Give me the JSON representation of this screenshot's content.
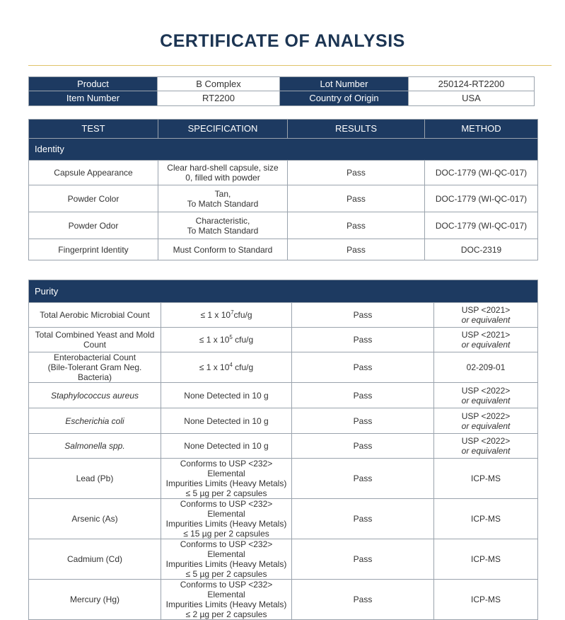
{
  "title": "CERTIFICATE OF ANALYSIS",
  "colors": {
    "header_fill": "#1d3a61",
    "title": "#1c3553",
    "rule": "#e0c46a"
  },
  "info": {
    "product_label": "Product",
    "product_value": "B Complex",
    "lot_label": "Lot Number",
    "lot_value": "250124-RT2200",
    "item_label": "Item Number",
    "item_value": "RT2200",
    "origin_label": "Country of Origin",
    "origin_value": "USA"
  },
  "columns": [
    "TEST",
    "SPECIFICATION",
    "RESULTS",
    "METHOD"
  ],
  "identity": {
    "title": "Identity",
    "rows": [
      {
        "test": "Capsule Appearance",
        "spec": [
          "Clear hard-shell capsule, size",
          "0, filled with powder"
        ],
        "result": "Pass",
        "method": [
          "DOC-1779 (WI-QC-017)"
        ]
      },
      {
        "test": "Powder Color",
        "spec": [
          "Tan,",
          "To Match Standard"
        ],
        "result": "Pass",
        "method": [
          "DOC-1779 (WI-QC-017)"
        ]
      },
      {
        "test": "Powder Odor",
        "spec": [
          "Characteristic,",
          "To Match Standard"
        ],
        "result": "Pass",
        "method": [
          "DOC-1779 (WI-QC-017)"
        ]
      },
      {
        "test": "Fingerprint Identity",
        "spec": [
          "Must Conform to Standard"
        ],
        "result": "Pass",
        "method": [
          "DOC-2319"
        ]
      }
    ]
  },
  "purity": {
    "title": "Purity",
    "rows": [
      {
        "test": [
          "Total Aerobic Microbial Count"
        ],
        "spec_exp": {
          "pre": "≤ 1 x 10",
          "sup": "7",
          "post": "cfu/g"
        },
        "result": "Pass",
        "method": [
          "USP <2021>",
          "or equivalent"
        ]
      },
      {
        "test": [
          "Total Combined Yeast and Mold",
          "Count"
        ],
        "spec_exp": {
          "pre": "≤ 1 x 10",
          "sup": "5",
          "post": " cfu/g"
        },
        "result": "Pass",
        "method": [
          "USP <2021>",
          "or equivalent"
        ]
      },
      {
        "test": [
          "Enterobacterial Count",
          "(Bile-Tolerant Gram Neg. Bacteria)"
        ],
        "spec_exp": {
          "pre": "≤ 1 x 10",
          "sup": "4",
          "post": " cfu/g"
        },
        "result": "Pass",
        "method": [
          "02-209-01"
        ]
      },
      {
        "test": [
          "Staphylococcus aureus"
        ],
        "italic": true,
        "spec": [
          "None Detected in 10 g"
        ],
        "result": "Pass",
        "method": [
          "USP <2022>",
          "or equivalent"
        ]
      },
      {
        "test": [
          "Escherichia coli"
        ],
        "italic": true,
        "spec": [
          "None Detected in 10 g"
        ],
        "result": "Pass",
        "method": [
          "USP <2022>",
          "or equivalent"
        ]
      },
      {
        "test": [
          "Salmonella spp."
        ],
        "italic": true,
        "spec": [
          "None Detected in 10 g"
        ],
        "result": "Pass",
        "method": [
          "USP <2022>",
          "or equivalent"
        ]
      },
      {
        "test": [
          "Lead (Pb)"
        ],
        "spec": [
          "Conforms to USP <232> Elemental",
          "Impurities Limits (Heavy Metals)",
          "≤ 5 µg per 2 capsules"
        ],
        "result": "Pass",
        "method": [
          "ICP-MS"
        ]
      },
      {
        "test": [
          "Arsenic (As)"
        ],
        "spec": [
          "Conforms to USP <232> Elemental",
          "Impurities Limits (Heavy Metals)",
          "≤ 15 µg per 2 capsules"
        ],
        "result": "Pass",
        "method": [
          "ICP-MS"
        ]
      },
      {
        "test": [
          "Cadmium (Cd)"
        ],
        "spec": [
          "Conforms to USP <232> Elemental",
          "Impurities Limits (Heavy Metals)",
          "≤ 5 µg per 2 capsules"
        ],
        "result": "Pass",
        "method": [
          "ICP-MS"
        ]
      },
      {
        "test": [
          "Mercury (Hg)"
        ],
        "spec": [
          "Conforms to USP <232> Elemental",
          "Impurities Limits (Heavy Metals)",
          "≤ 2 µg per 2 capsules"
        ],
        "result": "Pass",
        "method": [
          "ICP-MS"
        ]
      }
    ]
  }
}
